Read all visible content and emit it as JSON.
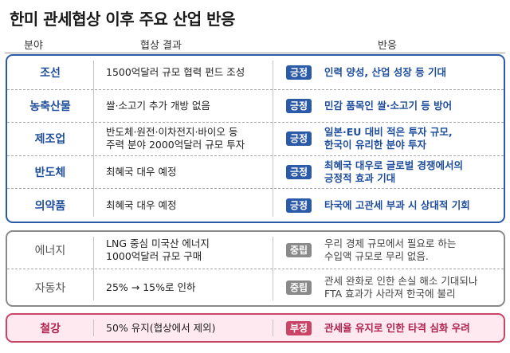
{
  "title": "한미 관세협상 이후 주요 산업 반응",
  "headers": {
    "sector": "분야",
    "result": "협상 결과",
    "reaction": "반응"
  },
  "badges": {
    "positive": "긍정",
    "neutral": "중립",
    "negative": "부정"
  },
  "colors": {
    "positive": "#2b5aa8",
    "neutral": "#8a8a8a",
    "negative": "#c94466"
  },
  "positive": [
    {
      "sector": "조선",
      "result": [
        "1500억달러 규모 협력 펀드 조성"
      ],
      "reaction": [
        "인력 양성, 산업 성장 등 기대"
      ]
    },
    {
      "sector": "농축산물",
      "result": [
        "쌀·소고기 추가 개방 없음"
      ],
      "reaction": [
        "민감 품목인 쌀·소고기 등 방어"
      ]
    },
    {
      "sector": "제조업",
      "result": [
        "반도체·원전·이차전지·바이오 등",
        "주력 분야 2000억달러 규모 투자"
      ],
      "reaction": [
        "일본·EU 대비 적은 투자 규모,",
        "한국이 유리한 분야 투자"
      ]
    },
    {
      "sector": "반도체",
      "result": [
        "최혜국 대우 예정"
      ],
      "reaction": [
        "최혜국 대우로 글로벌 경쟁에서의",
        "긍정적 효과 기대"
      ]
    },
    {
      "sector": "의약품",
      "result": [
        "최혜국 대우 예정"
      ],
      "reaction": [
        "타국에 고관세 부과 시 상대적 기회"
      ]
    }
  ],
  "neutral": [
    {
      "sector": "에너지",
      "result": [
        "LNG 중심 미국산 에너지",
        "1000억달러 규모 구매"
      ],
      "reaction": [
        "우리 경제 규모에서 필요로 하는",
        "수입액 규모로 무리 없음."
      ]
    },
    {
      "sector": "자동차",
      "result": [
        "25% → 15%로 인하"
      ],
      "reaction": [
        "관세 완화로 인한 손실 해소 기대되나",
        "FTA 효과가 사라져 한국에 불리"
      ]
    }
  ],
  "negative": [
    {
      "sector": "철강",
      "result": [
        "50% 유지(협상에서 제외)"
      ],
      "reaction": [
        "관세율 유지로 인한 타격 심화 우려"
      ]
    }
  ]
}
